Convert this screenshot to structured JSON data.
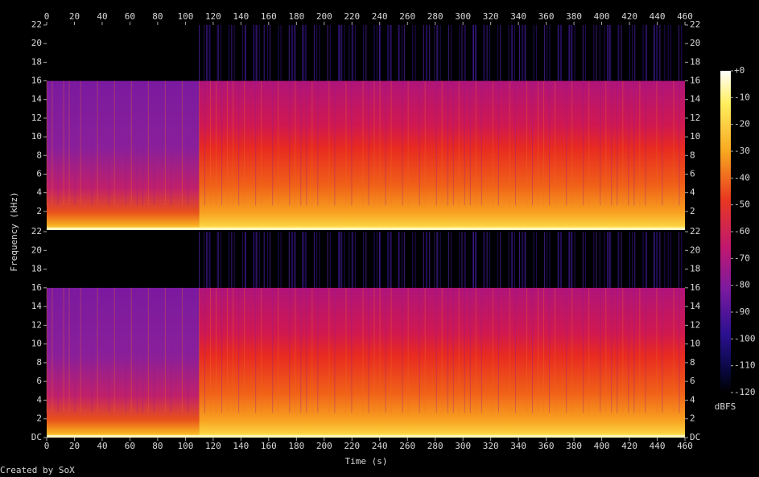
{
  "chart_data": {
    "type": "spectrogram",
    "xlabel": "Time (s)",
    "ylabel": "Frequency (kHz)",
    "xlim": [
      0,
      460
    ],
    "xticks": [
      0,
      20,
      40,
      60,
      80,
      100,
      120,
      140,
      160,
      180,
      200,
      220,
      240,
      260,
      280,
      300,
      320,
      340,
      360,
      380,
      400,
      420,
      440,
      460
    ],
    "channels": [
      {
        "ylim": [
          0,
          22
        ],
        "yticks": [
          2,
          4,
          6,
          8,
          10,
          12,
          14,
          16,
          18,
          20,
          22
        ]
      },
      {
        "ylim": [
          0,
          22
        ],
        "yticks": [
          {
            "value": 0,
            "label": "DC"
          },
          2,
          4,
          6,
          8,
          10,
          12,
          14,
          16,
          18,
          20,
          22
        ]
      }
    ],
    "colorbar": {
      "label": "dBFS",
      "lim": [
        -120,
        0
      ],
      "ticks": [
        {
          "value": 0,
          "label": "+0"
        },
        -10,
        -20,
        -30,
        -40,
        -50,
        -60,
        -70,
        -80,
        -90,
        -100,
        -110,
        -120
      ]
    },
    "credit": "Created by SoX"
  }
}
